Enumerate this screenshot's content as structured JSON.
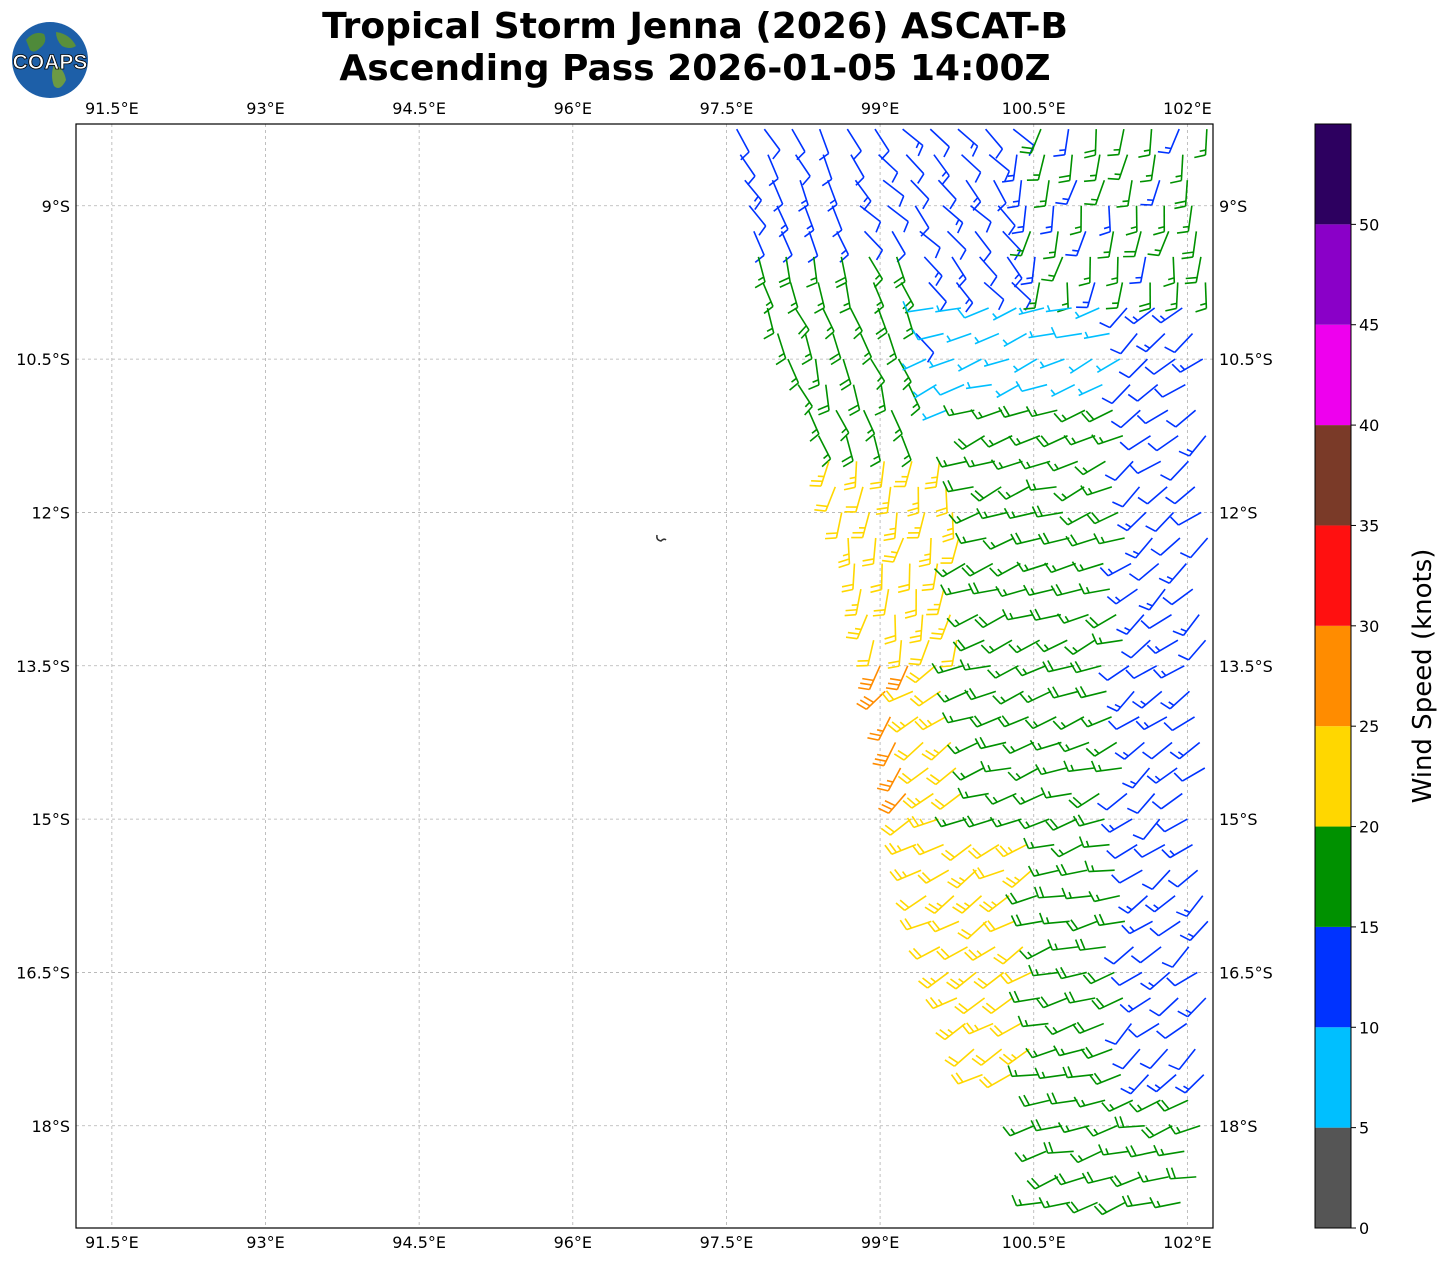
{
  "title": {
    "line1": "Tropical Storm Jenna (2026) ASCAT-B",
    "line2": "Ascending Pass 2026-01-05 14:00Z"
  },
  "logo": {
    "text": "COAPS",
    "icon": "globe-icon"
  },
  "chart_data": {
    "type": "wind-barb-map",
    "xlabel": "",
    "ylabel": "",
    "xlim": [
      91.15,
      102.25
    ],
    "ylim": [
      -19.0,
      -8.2
    ],
    "grid": true,
    "lon_ticks": [
      91.5,
      93.0,
      94.5,
      96.0,
      97.5,
      99.0,
      100.5,
      102.0
    ],
    "lon_tick_labels": [
      "91.5°E",
      "93°E",
      "94.5°E",
      "96°E",
      "97.5°E",
      "99°E",
      "100.5°E",
      "102°E"
    ],
    "lat_ticks": [
      -9.0,
      -10.5,
      -12.0,
      -13.5,
      -15.0,
      -16.5,
      -18.0
    ],
    "lat_tick_labels": [
      "9°S",
      "10.5°S",
      "12°S",
      "13.5°S",
      "15°S",
      "16.5°S",
      "18°S"
    ],
    "colorbar": {
      "label": "Wind Speed (knots)",
      "bounds": [
        0,
        5,
        10,
        15,
        20,
        25,
        30,
        35,
        40,
        45,
        50,
        55
      ],
      "tick_labels": [
        "0",
        "5",
        "10",
        "15",
        "20",
        "25",
        "30",
        "35",
        "40",
        "45",
        "50"
      ],
      "colors": [
        "#555555",
        "#00bfff",
        "#0033ff",
        "#009100",
        "#ffd700",
        "#ff8c00",
        "#ff1010",
        "#7a3a28",
        "#ee00ee",
        "#8a00c8",
        "#2d0060"
      ]
    },
    "swath": {
      "west_edge": [
        [
          97.6,
          -8.3
        ],
        [
          97.9,
          -10.0
        ],
        [
          98.5,
          -11.5
        ],
        [
          99.0,
          -13.5
        ],
        [
          99.3,
          -15.0
        ],
        [
          99.5,
          -16.0
        ],
        [
          100.0,
          -17.5
        ],
        [
          100.7,
          -19.0
        ]
      ],
      "east_edge_lon": 102.25
    },
    "wind_regions": [
      {
        "name": "northwest blue band",
        "lon": [
          97.6,
          98.7
        ],
        "lat": [
          -8.2,
          -9.4
        ],
        "speed_kt": 12,
        "dir_deg": 150
      },
      {
        "name": "north-central blue",
        "lon": [
          98.7,
          100.5
        ],
        "lat": [
          -8.2,
          -10.8
        ],
        "speed_kt": 12,
        "dir_deg": 140
      },
      {
        "name": "northeast green",
        "lon": [
          100.3,
          102.2
        ],
        "lat": [
          -8.2,
          -10.2
        ],
        "speed_kt": 16,
        "dir_deg": 190
      },
      {
        "name": "calm center light blue",
        "lon": [
          99.4,
          101.4
        ],
        "lat": [
          -9.8,
          -11.0
        ],
        "speed_kt": 7,
        "dir_deg": 250
      },
      {
        "name": "west flank green",
        "lon": [
          97.8,
          99.3
        ],
        "lat": [
          -9.4,
          -11.6
        ],
        "speed_kt": 17,
        "dir_deg": 160
      },
      {
        "name": "southwest yellow",
        "lon": [
          98.4,
          100.0
        ],
        "lat": [
          -11.3,
          -13.5
        ],
        "speed_kt": 22,
        "dir_deg": 190
      },
      {
        "name": "south orange maximum",
        "lon": [
          99.0,
          100.0
        ],
        "lat": [
          -13.5,
          -15.0
        ],
        "speed_kt": 27,
        "dir_deg": 215
      },
      {
        "name": "south yellow band",
        "lon": [
          99.3,
          101.0
        ],
        "lat": [
          -13.5,
          -17.5
        ],
        "speed_kt": 22,
        "dir_deg": 240
      },
      {
        "name": "east green",
        "lon": [
          99.8,
          101.8
        ],
        "lat": [
          -11.0,
          -15.0
        ],
        "speed_kt": 17,
        "dir_deg": 250
      },
      {
        "name": "southeast green",
        "lon": [
          100.5,
          102.2
        ],
        "lat": [
          -15.0,
          -19.0
        ],
        "speed_kt": 17,
        "dir_deg": 255
      },
      {
        "name": "far east blue",
        "lon": [
          101.4,
          102.2
        ],
        "lat": [
          -10.0,
          -17.5
        ],
        "speed_kt": 12,
        "dir_deg": 230
      }
    ]
  }
}
